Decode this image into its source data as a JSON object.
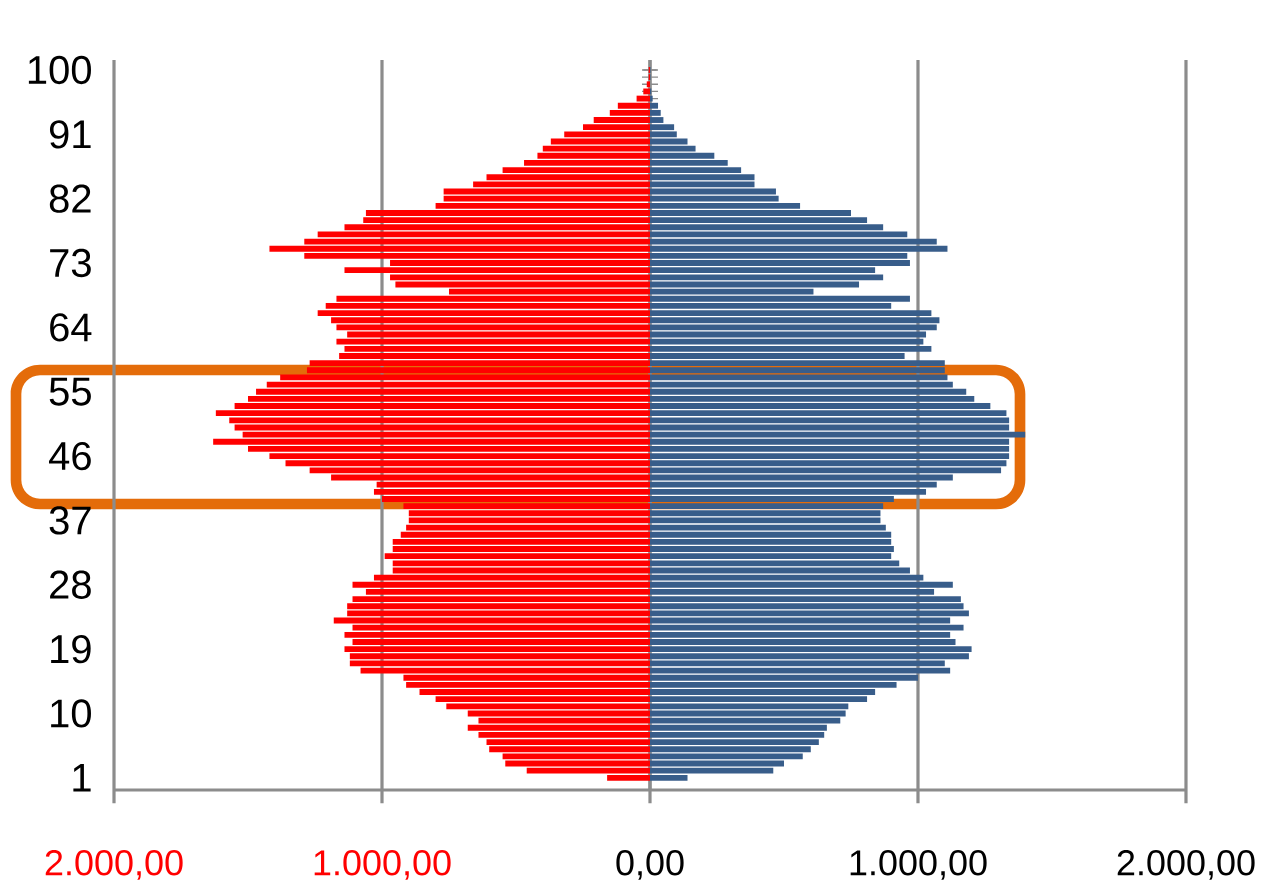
{
  "chart_data": {
    "type": "bar",
    "orientation": "horizontal",
    "categories": [
      "100",
      null,
      null,
      null,
      null,
      null,
      null,
      null,
      null,
      "91",
      null,
      null,
      null,
      null,
      null,
      null,
      null,
      null,
      "82",
      null,
      null,
      null,
      null,
      null,
      null,
      null,
      null,
      "73",
      null,
      null,
      null,
      null,
      null,
      null,
      null,
      null,
      "64",
      null,
      null,
      null,
      null,
      null,
      null,
      null,
      null,
      "55",
      null,
      null,
      null,
      null,
      null,
      null,
      null,
      null,
      "46",
      null,
      null,
      null,
      null,
      null,
      null,
      null,
      null,
      "37",
      null,
      null,
      null,
      null,
      null,
      null,
      null,
      null,
      "28",
      null,
      null,
      null,
      null,
      null,
      null,
      null,
      null,
      "19",
      null,
      null,
      null,
      null,
      null,
      null,
      null,
      null,
      "10",
      null,
      null,
      null,
      null,
      null,
      null,
      null,
      null,
      "1"
    ],
    "series": [
      {
        "color": "#ff0000",
        "values": [
          -5,
          -5,
          -12,
          -25,
          -50,
          -120,
          -150,
          -210,
          -250,
          -320,
          -370,
          -400,
          -420,
          -470,
          -550,
          -610,
          -660,
          -770,
          -770,
          -800,
          -1060,
          -1070,
          -1140,
          -1240,
          -1290,
          -1420,
          -1290,
          -970,
          -1140,
          -970,
          -950,
          -750,
          -1170,
          -1210,
          -1240,
          -1190,
          -1170,
          -1130,
          -1170,
          -1140,
          -1160,
          -1270,
          -1280,
          -1380,
          -1430,
          -1470,
          -1500,
          -1550,
          -1620,
          -1570,
          -1550,
          -1520,
          -1630,
          -1500,
          -1420,
          -1360,
          -1270,
          -1190,
          -1020,
          -1030,
          -1000,
          -920,
          -900,
          -900,
          -910,
          -930,
          -960,
          -960,
          -990,
          -960,
          -960,
          -1030,
          -1110,
          -1060,
          -1110,
          -1130,
          -1130,
          -1180,
          -1110,
          -1140,
          -1110,
          -1140,
          -1120,
          -1120,
          -1080,
          -920,
          -910,
          -860,
          -800,
          -760,
          -680,
          -640,
          -680,
          -640,
          -610,
          -600,
          -550,
          -540,
          -460,
          -160
        ]
      },
      {
        "color": "#385d8a",
        "values": [
          2,
          2,
          null,
          5,
          10,
          30,
          40,
          50,
          90,
          100,
          140,
          170,
          240,
          290,
          340,
          390,
          390,
          470,
          480,
          560,
          750,
          810,
          870,
          960,
          1070,
          1110,
          960,
          970,
          840,
          870,
          780,
          610,
          970,
          900,
          1050,
          1080,
          1070,
          1030,
          1020,
          1050,
          950,
          1100,
          1100,
          1110,
          1130,
          1180,
          1210,
          1270,
          1330,
          1340,
          1340,
          1400,
          1340,
          1340,
          1340,
          1330,
          1310,
          1130,
          1070,
          1030,
          910,
          870,
          860,
          860,
          880,
          900,
          900,
          910,
          900,
          930,
          970,
          1020,
          1130,
          1060,
          1160,
          1170,
          1190,
          1120,
          1170,
          1120,
          1140,
          1200,
          1190,
          1100,
          1120,
          1000,
          920,
          840,
          810,
          740,
          730,
          710,
          660,
          650,
          630,
          600,
          570,
          500,
          460,
          140
        ]
      }
    ],
    "xlim": [
      -2000,
      2000
    ],
    "xticks": [
      {
        "value": -2000,
        "label": "2.000,00"
      },
      {
        "value": -1000,
        "label": "1.000,00"
      },
      {
        "value": 0,
        "label": "0,00"
      },
      {
        "value": 1000,
        "label": "1.000,00"
      },
      {
        "value": 2000,
        "label": "2.000,00"
      }
    ],
    "grid": "x",
    "stacked": true
  }
}
